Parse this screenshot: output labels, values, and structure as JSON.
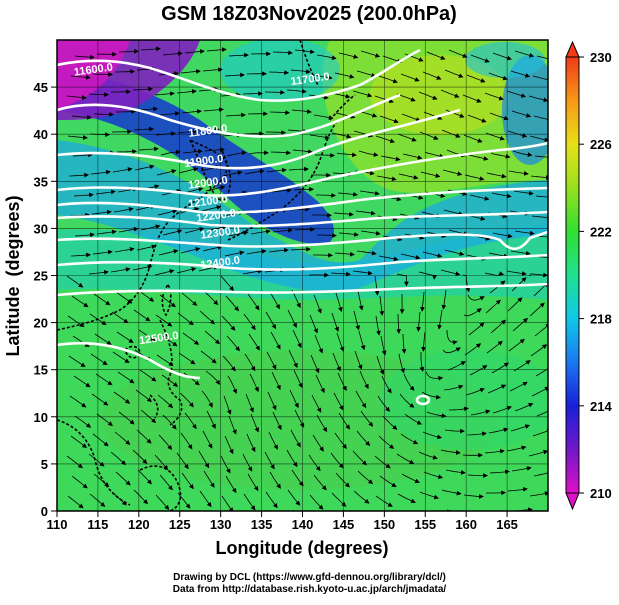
{
  "title": "GSM 18Z03Nov2025 (200.0hPa)",
  "xlabel": "Longitude (degrees)",
  "ylabel": "Latitude  (degrees)",
  "x_ticks": [
    "110",
    "115",
    "120",
    "125",
    "130",
    "135",
    "140",
    "145",
    "150",
    "155",
    "160",
    "165"
  ],
  "y_ticks": [
    "0",
    "5",
    "10",
    "15",
    "20",
    "25",
    "30",
    "35",
    "40",
    "45"
  ],
  "extent": {
    "lon": [
      110,
      170
    ],
    "lat": [
      0,
      50
    ]
  },
  "colorbar": {
    "min": 210,
    "max": 230,
    "tick_labels": [
      "210",
      "214",
      "218",
      "222",
      "226",
      "230"
    ],
    "tick_values": [
      210,
      214,
      218,
      222,
      226,
      230
    ],
    "colors": [
      "#e010c8",
      "#7018c8",
      "#1a20d8",
      "#1a78f0",
      "#10c8e8",
      "#20e090",
      "#30e030",
      "#98e020",
      "#e8e018",
      "#f89818",
      "#f03a18"
    ]
  },
  "contours": [
    {
      "label": "11600.0",
      "lon": 114.5,
      "lat": 46.5
    },
    {
      "label": "11700.0",
      "lon": 141.0,
      "lat": 45.5
    },
    {
      "label": "11800.0",
      "lon": 128.5,
      "lat": 40.0
    },
    {
      "label": "11900.0",
      "lon": 128.0,
      "lat": 36.8
    },
    {
      "label": "12000.0",
      "lon": 128.5,
      "lat": 34.5
    },
    {
      "label": "12100.0",
      "lon": 128.5,
      "lat": 32.5
    },
    {
      "label": "12200.0",
      "lon": 129.5,
      "lat": 31.0
    },
    {
      "label": "12300.0",
      "lon": 130.0,
      "lat": 29.2
    },
    {
      "label": "12400.0",
      "lon": 130.0,
      "lat": 26.0
    },
    {
      "label": "12500.0",
      "lon": 122.5,
      "lat": 18.0
    }
  ],
  "credits": {
    "line1": "Drawing by DCL (https://www.gfd-dennou.org/library/dcl/)",
    "line2": "Data from http://database.rish.kyoto-u.ac.jp/arch/jmadata/"
  }
}
